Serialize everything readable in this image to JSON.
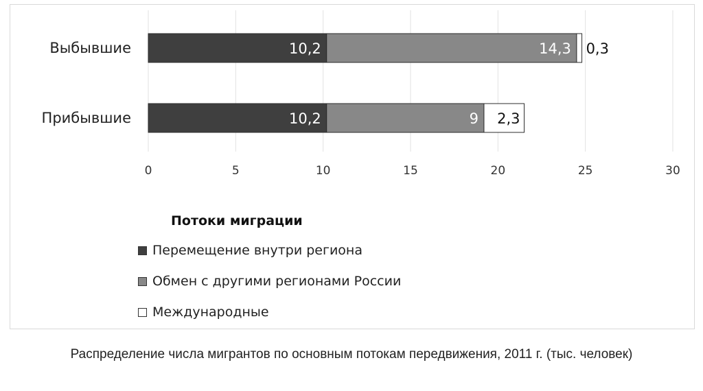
{
  "chart_data": {
    "type": "bar",
    "orientation": "horizontal",
    "stacked": true,
    "categories": [
      "Выбывшие",
      "Прибывшие"
    ],
    "series": [
      {
        "name": "Перемещение внутри региона",
        "values": [
          10.2,
          10.2
        ],
        "labels": [
          "10,2",
          "10,2"
        ],
        "color": "#3f3f3f"
      },
      {
        "name": "Обмен с другими регионами России",
        "values": [
          14.3,
          9
        ],
        "labels": [
          "14,3",
          "9"
        ],
        "color": "#888888"
      },
      {
        "name": "Международные",
        "values": [
          0.3,
          2.3
        ],
        "labels": [
          "0,3",
          "2,3"
        ],
        "color": "#ffffff"
      }
    ],
    "xlim": [
      0,
      30
    ],
    "xticks": [
      0,
      5,
      10,
      15,
      20,
      25,
      30
    ],
    "grid": true,
    "legend_title": "Потоки миграции",
    "legend_position": "bottom"
  },
  "caption": "Распределение числа мигрантов по основным потокам передвижения, 2011 г. (тыс. человек)"
}
